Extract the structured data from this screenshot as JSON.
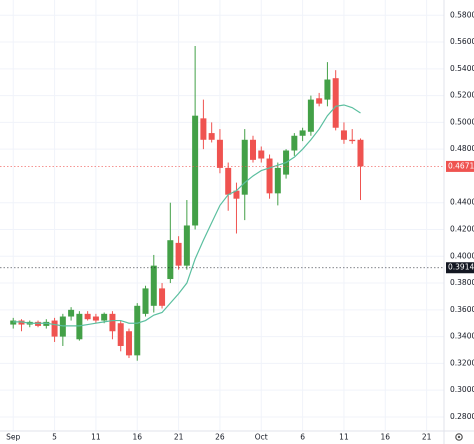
{
  "chart_data": {
    "type": "candlestick",
    "x": [
      0,
      1,
      2,
      3,
      4,
      5,
      6,
      7,
      8,
      9,
      10,
      11,
      12,
      13,
      14,
      15,
      16,
      17,
      18,
      19,
      20,
      21,
      22,
      23,
      24,
      25,
      26,
      27,
      28,
      29,
      30,
      31,
      32,
      33,
      34,
      35,
      36,
      37,
      38,
      39,
      40,
      41,
      42
    ],
    "open": [
      0.349,
      0.352,
      0.349,
      0.351,
      0.348,
      0.352,
      0.34,
      0.355,
      0.338,
      0.357,
      0.355,
      0.352,
      0.357,
      0.35,
      0.344,
      0.326,
      0.357,
      0.363,
      0.376,
      0.383,
      0.41,
      0.393,
      0.423,
      0.503,
      0.492,
      0.487,
      0.466,
      0.449,
      0.446,
      0.487,
      0.479,
      0.473,
      0.447,
      0.461,
      0.479,
      0.49,
      0.493,
      0.518,
      0.517,
      0.533,
      0.494,
      0.487,
      0.487
    ],
    "high": [
      0.354,
      0.353,
      0.352,
      0.352,
      0.353,
      0.354,
      0.357,
      0.362,
      0.359,
      0.359,
      0.357,
      0.358,
      0.359,
      0.352,
      0.346,
      0.365,
      0.378,
      0.401,
      0.38,
      0.44,
      0.415,
      0.442,
      0.557,
      0.517,
      0.5,
      0.495,
      0.47,
      0.455,
      0.495,
      0.49,
      0.482,
      0.476,
      0.47,
      0.48,
      0.492,
      0.496,
      0.52,
      0.522,
      0.545,
      0.539,
      0.5,
      0.495,
      0.488
    ],
    "low": [
      0.346,
      0.344,
      0.347,
      0.347,
      0.346,
      0.336,
      0.333,
      0.352,
      0.337,
      0.352,
      0.35,
      0.35,
      0.338,
      0.329,
      0.324,
      0.322,
      0.355,
      0.358,
      0.361,
      0.38,
      0.39,
      0.39,
      0.42,
      0.48,
      0.485,
      0.462,
      0.434,
      0.417,
      0.427,
      0.47,
      0.47,
      0.443,
      0.438,
      0.458,
      0.475,
      0.486,
      0.49,
      0.512,
      0.512,
      0.494,
      0.484,
      0.484,
      0.442
    ],
    "close": [
      0.352,
      0.349,
      0.351,
      0.348,
      0.351,
      0.34,
      0.355,
      0.36,
      0.357,
      0.353,
      0.352,
      0.357,
      0.344,
      0.333,
      0.326,
      0.363,
      0.376,
      0.393,
      0.363,
      0.412,
      0.393,
      0.423,
      0.505,
      0.487,
      0.487,
      0.466,
      0.446,
      0.443,
      0.487,
      0.472,
      0.473,
      0.447,
      0.466,
      0.479,
      0.49,
      0.494,
      0.517,
      0.514,
      0.532,
      0.496,
      0.487,
      0.486,
      0.46711
    ],
    "up_color": "#43a047",
    "down_color": "#ef5350",
    "ma": {
      "color": "#5bbf9f",
      "values": [
        0.351,
        0.351,
        0.35,
        0.35,
        0.35,
        0.349,
        0.348,
        0.348,
        0.348,
        0.349,
        0.35,
        0.351,
        0.352,
        0.352,
        0.35,
        0.35,
        0.352,
        0.356,
        0.358,
        0.365,
        0.372,
        0.38,
        0.398,
        0.412,
        0.425,
        0.438,
        0.446,
        0.449,
        0.455,
        0.46,
        0.464,
        0.466,
        0.468,
        0.47,
        0.474,
        0.48,
        0.487,
        0.495,
        0.505,
        0.512,
        0.513,
        0.511,
        0.507
      ]
    },
    "xlim": [
      -1.6,
      52.1
    ],
    "xticks": [
      {
        "value": 0,
        "label": "Sep"
      },
      5,
      {
        "value": 10,
        "label": "11"
      },
      {
        "value": 15,
        "label": "16"
      },
      {
        "value": 20,
        "label": "21"
      },
      {
        "value": 25,
        "label": "26"
      },
      {
        "value": 30,
        "label": "Oct"
      },
      {
        "value": 35,
        "label": "6"
      },
      {
        "value": 40,
        "label": "11"
      },
      {
        "value": 45,
        "label": "16"
      },
      {
        "value": 50,
        "label": "21"
      }
    ],
    "ylim": [
      0.2695,
      0.5914
    ],
    "yticks": [
      {
        "value": 0.28,
        "label": "0.28000"
      },
      {
        "value": 0.3,
        "label": "0.30000"
      },
      {
        "value": 0.32,
        "label": "0.32000"
      },
      {
        "value": 0.34,
        "label": "0.34000"
      },
      {
        "value": 0.36,
        "label": "0.36000"
      },
      {
        "value": 0.38,
        "label": "0.38000"
      },
      {
        "value": 0.4,
        "label": "0.40000"
      },
      {
        "value": 0.42,
        "label": "0.42000"
      },
      {
        "value": 0.44,
        "label": "0.44000"
      },
      {
        "value": 0.48,
        "label": "0.48000"
      },
      {
        "value": 0.5,
        "label": "0.50000"
      },
      {
        "value": 0.52,
        "label": "0.52000"
      },
      {
        "value": 0.54,
        "label": "0.54000"
      },
      {
        "value": 0.56,
        "label": "0.56000"
      },
      {
        "value": 0.58,
        "label": "0.58000"
      }
    ],
    "grid": true,
    "price_lines": [
      {
        "value": 0.46711,
        "label": "0.46711",
        "color": "#ef5350"
      },
      {
        "value": 0.39143,
        "label": "0.39143",
        "color": "#131722"
      }
    ]
  }
}
